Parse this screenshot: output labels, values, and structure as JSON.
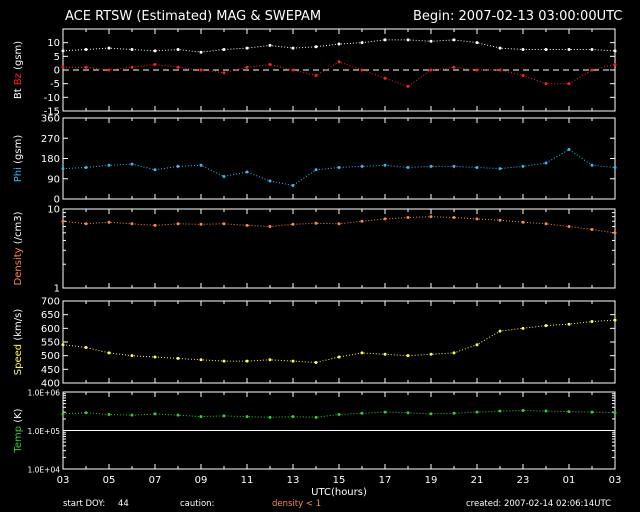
{
  "header": {
    "title": "ACE RTSW (Estimated) MAG & SWEPAM",
    "begin": "Begin: 2007-02-13 03:00:00UTC"
  },
  "footer": {
    "start_doy_label": "start DOY:",
    "start_doy_value": "44",
    "caution_label": "caution:",
    "caution_text": "density < 1",
    "created": "created: 2007-02-14 02:06:14UTC"
  },
  "colors": {
    "bt": "#ffffff",
    "bz": "#ff2020",
    "phi": "#33bbee",
    "density": "#ff8844",
    "speed": "#ffff44",
    "temp": "#33cc33",
    "axes": "#ffffff",
    "background": "#000000"
  },
  "chart_data": [
    {
      "type": "scatter",
      "panel": "mag",
      "ylabel_parts": [
        {
          "text": "Bt",
          "color": "#ffffff"
        },
        {
          "text": "Bz",
          "color": "#ff2020"
        },
        {
          "text": "(gsm)",
          "color": "#ffffff"
        }
      ],
      "ylim": [
        -15,
        15
      ],
      "yticks": [
        -15,
        -10,
        -5,
        0,
        5,
        10
      ],
      "ytick_labels": [
        "-15",
        "-10",
        "-5",
        "0",
        "5",
        "10"
      ],
      "zero_line": "dashed",
      "series": [
        {
          "key": "Bt",
          "color": "#ffffff",
          "x": [
            0,
            1,
            2,
            3,
            4,
            5,
            6,
            7,
            8,
            9,
            10,
            11,
            12,
            13,
            14,
            15,
            16,
            17,
            18,
            19,
            20,
            21,
            22,
            23,
            24
          ],
          "y": [
            7,
            7.5,
            8,
            7.5,
            7,
            7.5,
            6.5,
            7.5,
            8,
            9,
            8,
            8.5,
            9.5,
            10,
            11,
            11,
            10.5,
            11,
            10,
            8,
            7.5,
            7.5,
            7.5,
            7.5,
            7
          ]
        },
        {
          "key": "Bz",
          "color": "#ff2020",
          "x": [
            0,
            1,
            2,
            3,
            4,
            5,
            6,
            7,
            8,
            9,
            10,
            11,
            12,
            13,
            14,
            15,
            16,
            17,
            18,
            19,
            20,
            21,
            22,
            23,
            24
          ],
          "y": [
            1,
            1,
            0,
            1,
            2,
            1,
            0,
            -1,
            1,
            2,
            0,
            -2,
            3,
            0,
            -3,
            -6,
            0,
            1,
            0,
            0,
            -2,
            -5,
            -5,
            0,
            2
          ]
        }
      ]
    },
    {
      "type": "scatter",
      "panel": "phi",
      "ylabel_parts": [
        {
          "text": "Phi",
          "color": "#33bbee"
        },
        {
          "text": "(gsm)",
          "color": "#ffffff"
        }
      ],
      "ylim": [
        0,
        360
      ],
      "yticks": [
        0,
        90,
        180,
        270,
        360
      ],
      "ytick_labels": [
        "0",
        "90",
        "180",
        "270",
        "360"
      ],
      "series": [
        {
          "key": "Phi",
          "color": "#33bbee",
          "x": [
            0,
            1,
            2,
            3,
            4,
            5,
            6,
            7,
            8,
            9,
            10,
            11,
            12,
            13,
            14,
            15,
            16,
            17,
            18,
            19,
            20,
            21,
            22,
            23,
            24
          ],
          "y": [
            135,
            140,
            150,
            155,
            130,
            145,
            150,
            100,
            120,
            80,
            60,
            130,
            140,
            145,
            150,
            140,
            145,
            145,
            140,
            135,
            145,
            160,
            220,
            150,
            140
          ]
        }
      ]
    },
    {
      "type": "scatter",
      "panel": "density",
      "ylabel_parts": [
        {
          "text": "Density",
          "color": "#ff8844"
        },
        {
          "text": "(/cm3)",
          "color": "#ffffff"
        }
      ],
      "ylim": [
        1,
        10
      ],
      "yscale": "log",
      "yticks": [
        1,
        10
      ],
      "ytick_labels": [
        "1",
        "10"
      ],
      "series": [
        {
          "key": "Density",
          "color": "#ff8844",
          "x": [
            0,
            1,
            2,
            3,
            4,
            5,
            6,
            7,
            8,
            9,
            10,
            11,
            12,
            13,
            14,
            15,
            16,
            17,
            18,
            19,
            20,
            21,
            22,
            23,
            24
          ],
          "y": [
            7,
            6.5,
            6.8,
            6.5,
            6.2,
            6.5,
            6.4,
            6.5,
            6.2,
            6.0,
            6.4,
            6.6,
            6.5,
            7.0,
            7.5,
            7.8,
            8.0,
            7.8,
            7.5,
            7.2,
            6.8,
            6.5,
            6.0,
            5.5,
            5.0
          ]
        }
      ]
    },
    {
      "type": "scatter",
      "panel": "speed",
      "ylabel_parts": [
        {
          "text": "Speed",
          "color": "#ffff44"
        },
        {
          "text": "(km/s)",
          "color": "#ffffff"
        }
      ],
      "ylim": [
        400,
        700
      ],
      "yticks": [
        400,
        450,
        500,
        550,
        600,
        650,
        700
      ],
      "ytick_labels": [
        "400",
        "450",
        "500",
        "550",
        "600",
        "650",
        "700"
      ],
      "series": [
        {
          "key": "Speed",
          "color": "#ffff44",
          "x": [
            0,
            1,
            2,
            3,
            4,
            5,
            6,
            7,
            8,
            9,
            10,
            11,
            12,
            13,
            14,
            15,
            16,
            17,
            18,
            19,
            20,
            21,
            22,
            23,
            24
          ],
          "y": [
            540,
            530,
            510,
            500,
            495,
            490,
            485,
            480,
            480,
            485,
            480,
            475,
            495,
            510,
            505,
            500,
            505,
            510,
            540,
            590,
            600,
            610,
            615,
            625,
            630
          ]
        }
      ]
    },
    {
      "type": "scatter",
      "panel": "temp",
      "ylabel_parts": [
        {
          "text": "Temp",
          "color": "#33cc33"
        },
        {
          "text": "(K)",
          "color": "#ffffff"
        }
      ],
      "ylim": [
        10000,
        1000000
      ],
      "yscale": "log",
      "yticks": [
        10000,
        100000,
        1000000
      ],
      "ytick_labels": [
        "1.0E+04",
        "1.0E+05",
        "1.0E+06"
      ],
      "ref_line": 100000,
      "series": [
        {
          "key": "Temp",
          "color": "#33cc33",
          "x": [
            0,
            1,
            2,
            3,
            4,
            5,
            6,
            7,
            8,
            9,
            10,
            11,
            12,
            13,
            14,
            15,
            16,
            17,
            18,
            19,
            20,
            21,
            22,
            23,
            24
          ],
          "y": [
            270000,
            290000,
            260000,
            250000,
            270000,
            250000,
            230000,
            240000,
            230000,
            220000,
            230000,
            220000,
            260000,
            280000,
            300000,
            290000,
            270000,
            280000,
            300000,
            320000,
            330000,
            320000,
            310000,
            300000,
            290000
          ]
        }
      ]
    }
  ],
  "x_axis": {
    "label": "UTC(hours)",
    "xlim": [
      0,
      24
    ],
    "ticks": [
      0,
      2,
      4,
      6,
      8,
      10,
      12,
      14,
      16,
      18,
      20,
      22,
      24
    ],
    "tick_labels": [
      "03",
      "05",
      "07",
      "09",
      "11",
      "13",
      "15",
      "17",
      "19",
      "21",
      "23",
      "01",
      "03"
    ]
  }
}
